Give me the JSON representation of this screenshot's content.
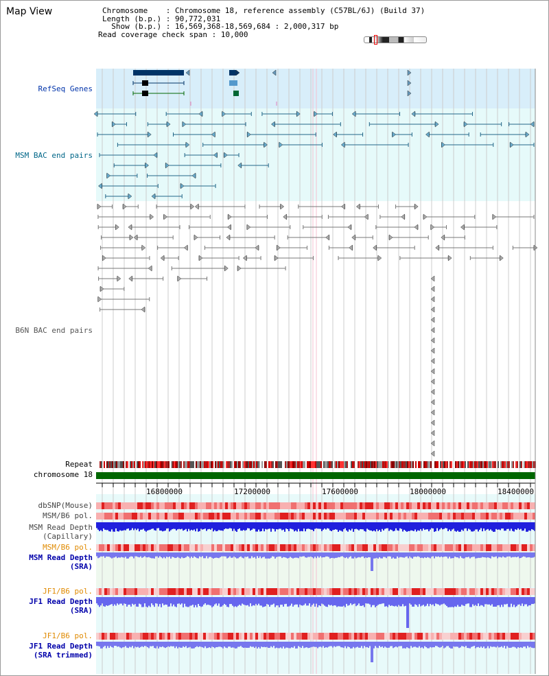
{
  "view_title": "Map View",
  "info": {
    "chromosome": "Chromosome    : Chromosome 18, reference assembly (C57BL/6J) (Build 37)",
    "length": "Length (b.p.) : 90,772,031",
    "show": "  Show (b.p.) : 16,569,368-18,569,684 : 2,000,317 bp",
    "span": "Read coverage check span : 10,000"
  },
  "tracks": {
    "refseq": "RefSeq Genes",
    "msm_bac": "MSM BAC end pairs",
    "b6n_bac": "B6N BAC end pairs",
    "repeat": "Repeat",
    "chromosome": "chromosome 18",
    "dbsnp": "dbSNP(Mouse)",
    "msm_b6_pol": "MSM/B6 pol.",
    "msm_depth_cap": "MSM Read Depth\n(Capillary)",
    "msm_b6_pol2": "MSM/B6 pol.",
    "msm_depth_sra": "MSM Read Depth\n(SRA)",
    "jf1_b6_pol": "JF1/B6 pol.",
    "jf1_depth_sra": "JF1 Read Depth\n(SRA)",
    "jf1_b6_pol2": "JF1/B6 pol.",
    "jf1_depth_trim": "JF1 Read Depth\n(SRA trimmed)"
  },
  "axis_ticks": [
    "16800000",
    "17200000",
    "17600000",
    "18000000",
    "18400000"
  ],
  "colors": {
    "refseq_bg": "#d8eefa",
    "msm_bac_bg": "#e6fafa",
    "refseq_text": "#0033aa",
    "msm_bac_text": "#006688",
    "b6n_text": "#555555",
    "chromosome_bar": "#006600",
    "orange_text": "#e08a00",
    "blue_text": "#0000aa"
  }
}
